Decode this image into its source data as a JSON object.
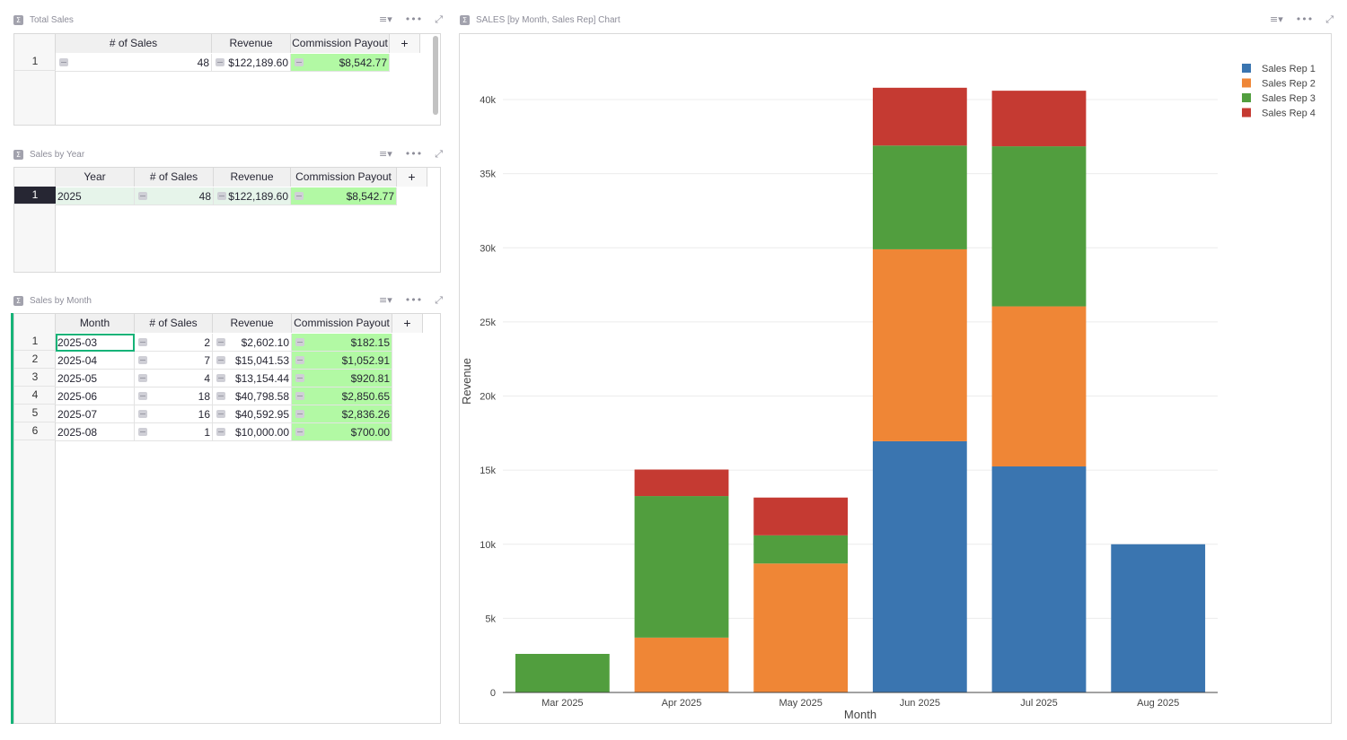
{
  "total_sales": {
    "title": "Total Sales",
    "columns": [
      "# of Sales",
      "Revenue",
      "Commission Payout",
      "+"
    ],
    "rows": [
      {
        "num": "1",
        "sales": "48",
        "revenue": "$122,189.60",
        "commission": "$8,542.77"
      }
    ]
  },
  "sales_by_year": {
    "title": "Sales by Year",
    "columns": [
      "Year",
      "# of Sales",
      "Revenue",
      "Commission Payout",
      "+"
    ],
    "rows": [
      {
        "num": "1",
        "year": "2025",
        "sales": "48",
        "revenue": "$122,189.60",
        "commission": "$8,542.77"
      }
    ]
  },
  "sales_by_month": {
    "title": "Sales by Month",
    "columns": [
      "Month",
      "# of Sales",
      "Revenue",
      "Commission Payout",
      "+"
    ],
    "rows": [
      {
        "num": "1",
        "month": "2025-03",
        "sales": "2",
        "revenue": "$2,602.10",
        "commission": "$182.15"
      },
      {
        "num": "2",
        "month": "2025-04",
        "sales": "7",
        "revenue": "$15,041.53",
        "commission": "$1,052.91"
      },
      {
        "num": "3",
        "month": "2025-05",
        "sales": "4",
        "revenue": "$13,154.44",
        "commission": "$920.81"
      },
      {
        "num": "4",
        "month": "2025-06",
        "sales": "18",
        "revenue": "$40,798.58",
        "commission": "$2,850.65"
      },
      {
        "num": "5",
        "month": "2025-07",
        "sales": "16",
        "revenue": "$40,592.95",
        "commission": "$2,836.26"
      },
      {
        "num": "6",
        "month": "2025-08",
        "sales": "1",
        "revenue": "$10,000.00",
        "commission": "$700.00"
      }
    ]
  },
  "chart_widget": {
    "title": "SALES [by Month, Sales Rep] Chart"
  },
  "icons": {
    "sigma": "Σ",
    "sort_filter": "≡▾",
    "more": "•••",
    "expand": "⤢"
  },
  "colors": {
    "accent": "#16b378",
    "commission_bg": "#b2f9a4",
    "rep1": "#3a75b0",
    "rep2": "#ef8636",
    "rep3": "#519e3e",
    "rep4": "#c53a32"
  },
  "chart_data": {
    "type": "bar",
    "stacked": true,
    "title": "",
    "xlabel": "Month",
    "ylabel": "Revenue",
    "ylim": [
      0,
      42000
    ],
    "yticks": [
      0,
      5000,
      10000,
      15000,
      20000,
      25000,
      30000,
      35000,
      40000
    ],
    "ytick_labels": [
      "0",
      "5k",
      "10k",
      "15k",
      "20k",
      "25k",
      "30k",
      "35k",
      "40k"
    ],
    "categories": [
      "Mar 2025",
      "Apr 2025",
      "May 2025",
      "Jun 2025",
      "Jul 2025",
      "Aug 2025"
    ],
    "series": [
      {
        "name": "Sales Rep 1",
        "color": "#3a75b0",
        "values": [
          0,
          0,
          0,
          16950,
          15250,
          10000
        ]
      },
      {
        "name": "Sales Rep 2",
        "color": "#ef8636",
        "values": [
          0,
          3700,
          8700,
          12950,
          10800,
          0
        ]
      },
      {
        "name": "Sales Rep 3",
        "color": "#519e3e",
        "values": [
          2602,
          9550,
          1900,
          7000,
          10800,
          0
        ]
      },
      {
        "name": "Sales Rep 4",
        "color": "#c53a32",
        "values": [
          0,
          1790,
          2550,
          3900,
          3750,
          0
        ]
      }
    ],
    "legend_position": "top-right",
    "grid": true
  }
}
